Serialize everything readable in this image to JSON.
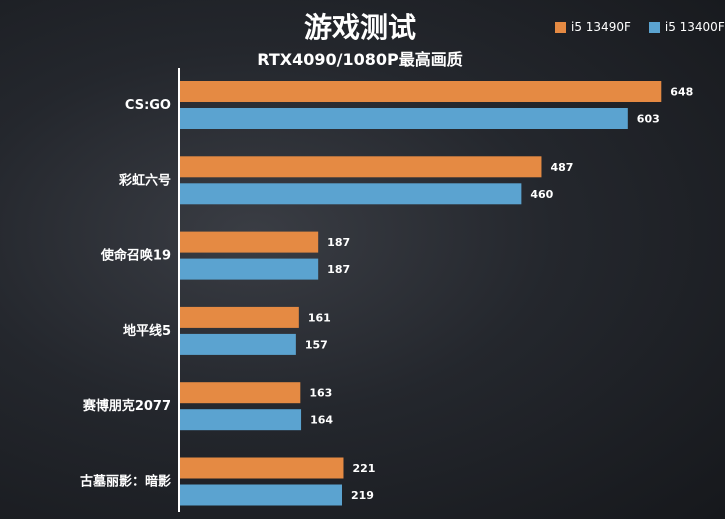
{
  "chart_data": {
    "type": "bar",
    "orientation": "horizontal",
    "title": "游戏测试",
    "subtitle": "RTX4090/1080P最高画质",
    "categories": [
      "CS:GO",
      "彩虹六号",
      "使命召唤19",
      "地平线5",
      "赛博朋克2077",
      "古墓丽影：暗影"
    ],
    "series": [
      {
        "name": "i5 13490F",
        "color": "#e58a43",
        "values": [
          648,
          487,
          187,
          161,
          163,
          221
        ]
      },
      {
        "name": "i5 13400F",
        "color": "#5ba3d0",
        "values": [
          603,
          460,
          187,
          157,
          164,
          219
        ]
      }
    ],
    "xlim": [
      0,
      700
    ],
    "grid": false,
    "legend_position": "top-right"
  }
}
